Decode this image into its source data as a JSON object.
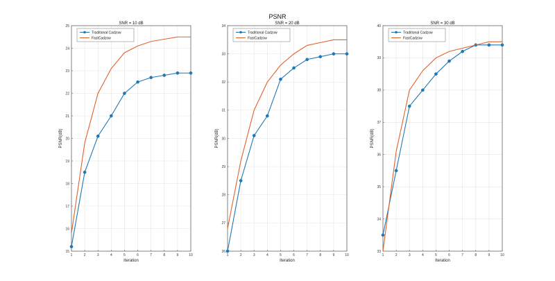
{
  "figure": {
    "title": "PSNR"
  },
  "colors": {
    "traditional": "#1f77b4",
    "fast": "#e0622a",
    "grid": "#e4e4e4",
    "axis": "#666666"
  },
  "chart_data": [
    {
      "type": "line",
      "title": "SNR = 10 dB",
      "xlabel": "Iteration",
      "ylabel": "PSNR(dB)",
      "xlim": [
        1,
        10
      ],
      "ylim": [
        15,
        25
      ],
      "x": [
        1,
        2,
        3,
        4,
        5,
        6,
        7,
        8,
        9,
        10
      ],
      "xticks": [
        "1",
        "2",
        "3",
        "4",
        "5",
        "6",
        "7",
        "8",
        "9",
        "10"
      ],
      "yticks": [
        "15",
        "16",
        "17",
        "18",
        "19",
        "20",
        "21",
        "22",
        "23",
        "24",
        "25"
      ],
      "legend": "top-left",
      "grid": true,
      "series": [
        {
          "name": "Traditional Cadzow",
          "color": "#1f77b4",
          "marker": "circle",
          "values": [
            15.2,
            18.5,
            20.1,
            21.0,
            22.0,
            22.5,
            22.7,
            22.8,
            22.9,
            22.9
          ]
        },
        {
          "name": "FastCadzow",
          "color": "#e0622a",
          "marker": "none",
          "values": [
            15.8,
            19.8,
            22.0,
            23.1,
            23.8,
            24.1,
            24.3,
            24.4,
            24.5,
            24.5
          ]
        }
      ]
    },
    {
      "type": "line",
      "title": "SNR = 20 dB",
      "xlabel": "Iteration",
      "ylabel": "PSNR(dB)",
      "xlim": [
        1,
        10
      ],
      "ylim": [
        26,
        34
      ],
      "x": [
        1,
        2,
        3,
        4,
        5,
        6,
        7,
        8,
        9,
        10
      ],
      "xticks": [
        "1",
        "2",
        "3",
        "4",
        "5",
        "6",
        "7",
        "8",
        "9",
        "10"
      ],
      "yticks": [
        "26",
        "27",
        "28",
        "29",
        "30",
        "31",
        "32",
        "33",
        "34"
      ],
      "legend": "top-left",
      "grid": true,
      "series": [
        {
          "name": "Traditional Cadzow",
          "color": "#1f77b4",
          "marker": "circle",
          "values": [
            26.0,
            28.5,
            30.1,
            30.8,
            32.1,
            32.5,
            32.8,
            32.9,
            33.0,
            33.0
          ]
        },
        {
          "name": "FastCadzow",
          "color": "#e0622a",
          "marker": "none",
          "values": [
            26.8,
            29.2,
            31.0,
            32.0,
            32.6,
            33.0,
            33.3,
            33.4,
            33.5,
            33.5
          ]
        }
      ]
    },
    {
      "type": "line",
      "title": "SNR = 30 dB",
      "xlabel": "Iteration",
      "ylabel": "PSNR(dB)",
      "xlim": [
        1,
        10
      ],
      "ylim": [
        33,
        40
      ],
      "x": [
        1,
        2,
        3,
        4,
        5,
        6,
        7,
        8,
        9,
        10
      ],
      "xticks": [
        "1",
        "2",
        "3",
        "4",
        "5",
        "6",
        "7",
        "8",
        "9",
        "10"
      ],
      "yticks": [
        "33",
        "34",
        "35",
        "36",
        "37",
        "38",
        "39",
        "40"
      ],
      "legend": "top-left",
      "grid": true,
      "series": [
        {
          "name": "Traditional Cadzow",
          "color": "#1f77b4",
          "marker": "circle",
          "values": [
            33.5,
            35.5,
            37.5,
            38.0,
            38.5,
            38.9,
            39.2,
            39.4,
            39.4,
            39.4
          ]
        },
        {
          "name": "FastCadzow",
          "color": "#e0622a",
          "marker": "none",
          "values": [
            33.0,
            36.1,
            38.0,
            38.6,
            39.0,
            39.2,
            39.3,
            39.4,
            39.5,
            39.5
          ]
        }
      ]
    }
  ]
}
